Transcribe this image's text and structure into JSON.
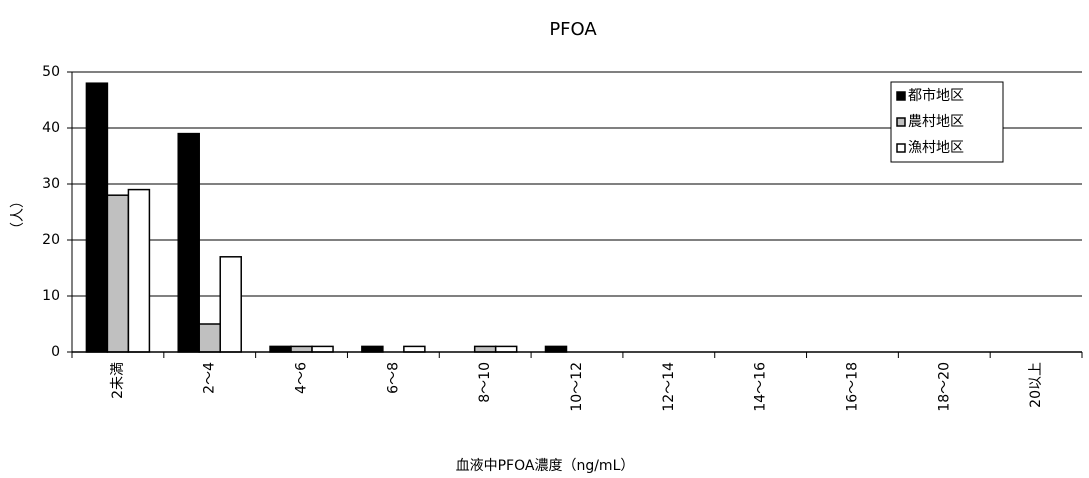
{
  "chart_data": {
    "type": "bar",
    "title": "PFOA",
    "x_label": "血液中PFOA濃度（ng/mL）",
    "y_label": "（人）",
    "categories": [
      "2未満",
      "2～4",
      "4～6",
      "6～8",
      "8～10",
      "10～12",
      "12～14",
      "14～16",
      "16～18",
      "18～20",
      "20以上"
    ],
    "series": [
      {
        "name": "都市地区",
        "color": "#000000",
        "values": [
          48,
          39,
          1,
          1,
          0,
          1,
          0,
          0,
          0,
          0,
          0
        ]
      },
      {
        "name": "農村地区",
        "color": "#c0c0c0",
        "values": [
          28,
          5,
          1,
          0,
          1,
          0,
          0,
          0,
          0,
          0,
          0
        ]
      },
      {
        "name": "漁村地区",
        "color": "#ffffff",
        "values": [
          29,
          17,
          1,
          1,
          1,
          0,
          0,
          0,
          0,
          0,
          0
        ]
      }
    ],
    "ylim": [
      0,
      50
    ],
    "yticks": [
      0,
      10,
      20,
      30,
      40,
      50
    ],
    "grid": true,
    "legend": "upper right"
  }
}
